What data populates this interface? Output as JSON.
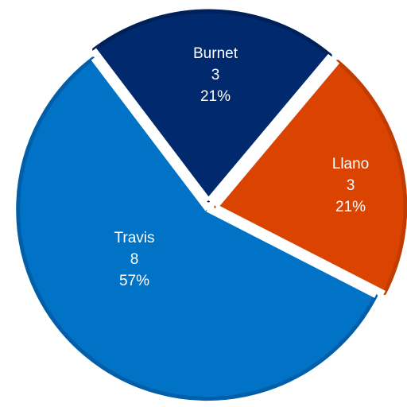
{
  "chart_data": {
    "type": "pie",
    "title": "",
    "slices": [
      {
        "category": "Burnet",
        "value": 3,
        "percent": "21%",
        "color": "#002a6d",
        "border": "#00205a"
      },
      {
        "category": "Llano",
        "value": 3,
        "percent": "21%",
        "color": "#db4400",
        "border": "#c23c00"
      },
      {
        "category": "Travis",
        "value": 8,
        "percent": "57%",
        "color": "#0073c6",
        "border": "#005fa8"
      }
    ],
    "legend": "none",
    "data_labels": [
      "category",
      "value",
      "percent"
    ]
  }
}
